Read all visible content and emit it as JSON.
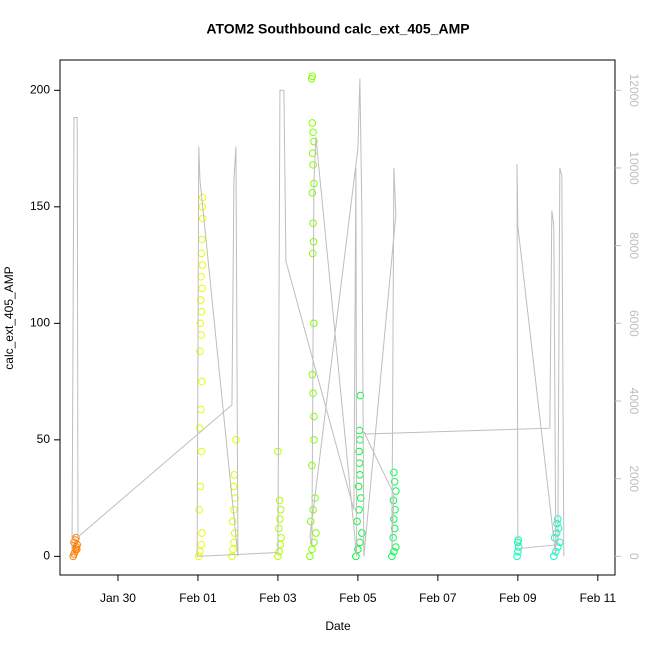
{
  "chart_data": {
    "type": "scatter",
    "title": "ATOM2 Southbound calc_ext_405_AMP",
    "x_label": "Date",
    "y_label": "calc_ext_405_AMP",
    "xlim": [
      28.55,
      42.43
    ],
    "ylim": [
      -8,
      213
    ],
    "y2lim": [
      -480,
      12780
    ],
    "xticks": [
      {
        "value": 30,
        "label": "Jan 30"
      },
      {
        "value": 32,
        "label": "Feb 01"
      },
      {
        "value": 34,
        "label": "Feb 03"
      },
      {
        "value": 36,
        "label": "Feb 05"
      },
      {
        "value": 38,
        "label": "Feb 07"
      },
      {
        "value": 40,
        "label": "Feb 09"
      },
      {
        "value": 42,
        "label": "Feb 11"
      }
    ],
    "yticks": [
      0,
      50,
      100,
      150,
      200
    ],
    "y2ticks": [
      0,
      2000,
      4000,
      6000,
      8000,
      10000,
      12000
    ],
    "series": [
      {
        "color": "#FF8000",
        "x": [
          28.88,
          28.9,
          28.92,
          28.94,
          28.96,
          28.98,
          28.9,
          28.93,
          28.95,
          28.97
        ],
        "values": [
          0,
          1,
          2,
          3,
          4,
          5,
          6,
          7,
          8,
          3
        ]
      },
      {
        "color": "#E6FF00",
        "x": [
          32.02,
          32.05,
          32.08,
          32.1,
          32.03,
          32.06,
          32.09,
          32.04,
          32.07,
          32.1,
          32.05,
          32.08,
          32.06,
          32.09,
          32.07,
          32.1,
          32.08,
          32.11,
          32.09,
          32.1,
          32.12,
          32.11,
          32.12
        ],
        "values": [
          0,
          2,
          5,
          10,
          20,
          30,
          45,
          55,
          63,
          75,
          88,
          95,
          100,
          105,
          110,
          115,
          120,
          125,
          130,
          136,
          145,
          150,
          154
        ]
      },
      {
        "color": "#D9FF00",
        "x": [
          32.85,
          32.88,
          32.9,
          32.92,
          32.87,
          32.9,
          32.93,
          32.89,
          32.91,
          32.95
        ],
        "values": [
          0,
          3,
          6,
          10,
          15,
          20,
          25,
          30,
          35,
          50
        ]
      },
      {
        "color": "#B3FF00",
        "x": [
          34.0,
          34.03,
          34.06,
          34.08,
          34.02,
          34.05,
          34.07,
          34.04,
          34.0
        ],
        "values": [
          0,
          2,
          5,
          8,
          12,
          16,
          20,
          24,
          45
        ]
      },
      {
        "color": "#80FF00",
        "x": [
          34.8,
          34.85,
          34.9,
          34.95,
          34.82,
          34.88,
          34.93,
          34.85,
          34.9,
          34.9,
          34.88,
          34.86,
          34.9,
          34.87,
          34.89,
          34.88,
          34.86,
          34.9,
          34.88,
          34.87,
          34.9,
          34.88,
          34.86,
          34.84,
          34.86
        ],
        "values": [
          0,
          3,
          6,
          10,
          15,
          20,
          25,
          39,
          50,
          60,
          70,
          78,
          100,
          130,
          135,
          143,
          156,
          160,
          168,
          173,
          178,
          182,
          186,
          205,
          206
        ]
      },
      {
        "color": "#00FF33",
        "x": [
          35.95,
          36.0,
          36.05,
          36.1,
          35.98,
          36.03,
          36.07,
          36.02,
          36.05,
          36.04,
          36.03,
          36.05,
          36.04,
          36.06
        ],
        "values": [
          0,
          3,
          6,
          10,
          15,
          20,
          25,
          30,
          35,
          40,
          45,
          50,
          54,
          69
        ]
      },
      {
        "color": "#00FF4D",
        "x": [
          36.85,
          36.9,
          36.95,
          36.88,
          36.92,
          36.9,
          36.93,
          36.89,
          36.95,
          36.92,
          36.9
        ],
        "values": [
          0,
          2,
          4,
          8,
          12,
          16,
          20,
          24,
          28,
          32,
          36
        ]
      },
      {
        "color": "#00FFB3",
        "x": [
          39.98,
          40.0,
          40.02,
          40.0,
          40.01
        ],
        "values": [
          0,
          2,
          4,
          6,
          7
        ]
      },
      {
        "color": "#00FFCC",
        "x": [
          40.9,
          40.95,
          41.0,
          41.05,
          40.92,
          40.97,
          41.02,
          40.98,
          41.0
        ],
        "values": [
          0,
          2,
          4,
          6,
          8,
          10,
          12,
          14,
          16
        ]
      },
      {
        "type": "line",
        "axis": "y2",
        "color": "#bebebe",
        "x": [
          28.85,
          28.9,
          28.98,
          29.0,
          32.85,
          32.9,
          32.95,
          33.0,
          32.05,
          32.02,
          31.98,
          34.0,
          34.05,
          34.15,
          34.2,
          35.9,
          35.95,
          35.97,
          34.95,
          34.9,
          34.85,
          34.8,
          36.0,
          36.05,
          36.1,
          36.15,
          36.95,
          36.9,
          36.85,
          36.9,
          36.15,
          36.2,
          40.8,
          40.85,
          40.9,
          40.95,
          40.0,
          39.98,
          40.0,
          41.0,
          41.05,
          41.1,
          41.15
        ],
        "values": [
          0,
          11300,
          11300,
          500,
          3900,
          9700,
          10550,
          0,
          9700,
          10550,
          0,
          100,
          12000,
          12000,
          7600,
          1200,
          10000,
          0,
          10800,
          9600,
          300,
          500,
          10500,
          12300,
          8800,
          0,
          8800,
          10000,
          100,
          1600,
          3200,
          3150,
          3300,
          8900,
          8500,
          0,
          8500,
          10100,
          200,
          300,
          10000,
          9800,
          0
        ]
      }
    ]
  }
}
